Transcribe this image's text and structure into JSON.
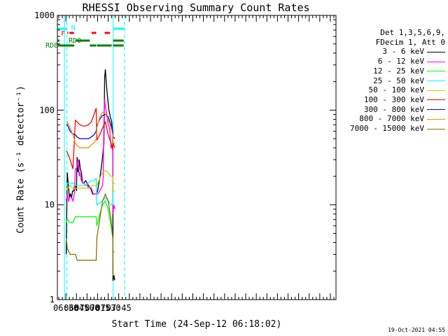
{
  "chart_data": {
    "type": "line",
    "title": "RHESSI Observing Summary Count Rates",
    "xlabel": "Start Time (24-Sep-12 06:18:02)",
    "ylabel": "Count Rate (s⁻¹ detector⁻¹)",
    "yscale": "log",
    "ylim": [
      1,
      1000
    ],
    "xlim_minutes_of_day": [
      378,
      773
    ],
    "yticks": [
      1,
      10,
      100,
      1000
    ],
    "ytick_labels": [
      "1",
      "10",
      "100",
      "1000"
    ],
    "xticks": [
      {
        "label": "06:30",
        "minute": 390
      },
      {
        "label": "06:45",
        "minute": 405
      },
      {
        "label": "07:00",
        "minute": 420
      },
      {
        "label": "07:15",
        "minute": 435
      },
      {
        "label": "07:30",
        "minute": 450
      },
      {
        "label": "07:45",
        "minute": 465
      }
    ],
    "legend_header": [
      "Det 1,3,5,6,9,",
      "FDecim 1, Att 0"
    ],
    "series": [
      {
        "name": "3 - 6 keV",
        "color": "#000000",
        "x": [
          390.5,
          392,
          393.5,
          395,
          396.5,
          398,
          399.5,
          401,
          402.5,
          403.5,
          405,
          406,
          407,
          408,
          409,
          410.5,
          412,
          413.5,
          415,
          418,
          420,
          422,
          425,
          428,
          430,
          432,
          433,
          435,
          438,
          440,
          442,
          444,
          445,
          446,
          447,
          448,
          449,
          451,
          453,
          455,
          456.5,
          456.8,
          457,
          458,
          459.5
        ],
        "y": [
          3.0,
          22,
          16,
          12,
          13,
          12,
          14,
          14,
          16,
          16,
          14,
          32,
          23,
          22,
          30,
          24,
          22,
          17,
          17,
          18,
          17,
          16,
          15,
          13,
          13,
          13,
          13,
          14,
          19,
          24,
          32,
          45,
          220,
          270,
          210,
          170,
          140,
          100,
          85,
          75,
          55,
          1.6,
          1.6,
          1.8,
          1.6
        ]
      },
      {
        "name": "6 - 12 keV",
        "color": "#ff00ff",
        "x": [
          390.5,
          392,
          394,
          396,
          398,
          400,
          402,
          403.5,
          405,
          406,
          407,
          408,
          409,
          410,
          412,
          414,
          416,
          418,
          420,
          423,
          426,
          429,
          432,
          435,
          438,
          440,
          442,
          443,
          444,
          445,
          446,
          448,
          450,
          452,
          454,
          456.5,
          456.8,
          458,
          459.5
        ],
        "y": [
          11,
          13,
          11,
          12,
          12,
          11,
          13,
          24,
          24,
          26,
          30,
          30,
          20,
          22,
          18,
          17,
          17,
          16,
          16,
          15,
          15,
          13,
          13,
          13,
          14,
          15,
          16,
          20,
          80,
          130,
          110,
          90,
          70,
          65,
          40,
          40,
          8,
          10,
          9
        ]
      },
      {
        "name": "12 - 25 keV",
        "color": "#00ff00",
        "x": [
          390.5,
          392,
          396,
          400,
          403.5,
          406,
          410,
          414,
          418,
          422,
          426,
          430,
          433,
          434,
          438,
          442,
          446,
          450,
          454,
          456.5,
          456.8,
          459.5
        ],
        "y": [
          6.5,
          7,
          6.5,
          6.5,
          7.5,
          7.5,
          7.5,
          7.5,
          7.5,
          7.5,
          7.5,
          7.5,
          7.5,
          6,
          8,
          10,
          11,
          9,
          6,
          4.5,
          3.2,
          3.2
        ]
      },
      {
        "name": "25 - 50 keV",
        "color": "#00ffff",
        "x": [
          390.5,
          392,
          396,
          400,
          403.5,
          406,
          410,
          414,
          418,
          422,
          426,
          430,
          433,
          434,
          438,
          442,
          446,
          450,
          454,
          456.5,
          457,
          459.5
        ],
        "y": [
          15,
          17,
          17,
          17,
          16,
          16,
          16,
          16,
          16,
          17,
          18,
          18,
          19,
          10,
          10.5,
          11,
          12,
          11,
          10,
          10,
          17,
          17
        ]
      },
      {
        "name": "50 - 100 keV",
        "color": "#cccc00",
        "x": [
          390.5,
          392,
          396,
          400,
          403.5,
          406,
          410,
          414,
          418,
          422,
          426,
          430,
          433,
          434,
          438,
          442,
          446,
          450,
          454,
          456.5,
          457,
          459.5
        ],
        "y": [
          14,
          15,
          16,
          15,
          15,
          15,
          15,
          15,
          15,
          15,
          16,
          16,
          16,
          16,
          19,
          22,
          23,
          22,
          20,
          20,
          14,
          14
        ]
      },
      {
        "name": "100 - 300 keV",
        "color": "#ff0000",
        "x": [
          390.5,
          392,
          396,
          400,
          403.5,
          406,
          410,
          414,
          418,
          422,
          426,
          430,
          433,
          434,
          438,
          442,
          446,
          450,
          454,
          456.5,
          457,
          459.5
        ],
        "y": [
          37,
          36,
          30,
          24,
          78,
          75,
          70,
          68,
          68,
          70,
          75,
          90,
          105,
          48,
          55,
          65,
          75,
          55,
          45,
          38,
          45,
          40
        ]
      },
      {
        "name": "300 - 800 keV",
        "color": "#0000ff",
        "x": [
          390.5,
          392,
          396,
          400,
          403.5,
          406,
          410,
          414,
          418,
          422,
          426,
          430,
          433,
          434,
          438,
          442,
          446,
          450,
          454,
          456.5,
          457,
          459.5
        ],
        "y": [
          70,
          70,
          60,
          56,
          55,
          52,
          50,
          50,
          50,
          50,
          52,
          55,
          60,
          68,
          80,
          88,
          90,
          85,
          70,
          60,
          52,
          50
        ]
      },
      {
        "name": "800 - 7000 keV",
        "color": "#ff8c00",
        "x": [
          390.5,
          392,
          396,
          400,
          403.5,
          406,
          410,
          414,
          418,
          422,
          426,
          430,
          433,
          434,
          438,
          442,
          446,
          450,
          454,
          456.5,
          457,
          459.5
        ],
        "y": [
          75,
          75,
          65,
          55,
          45,
          42,
          40,
          40,
          40,
          40,
          43,
          45,
          50,
          65,
          85,
          95,
          92,
          80,
          65,
          55,
          45,
          45
        ]
      },
      {
        "name": "7000 - 15000 keV",
        "color": "#8b7500",
        "x": [
          390.5,
          392,
          396,
          400,
          403.5,
          406,
          410,
          414,
          418,
          422,
          426,
          430,
          433,
          434,
          438,
          442,
          446,
          450,
          454,
          456.5,
          457,
          459.5
        ],
        "y": [
          4.5,
          3.5,
          3,
          3,
          3,
          2.6,
          2.6,
          2.6,
          2.6,
          2.6,
          2.6,
          2.6,
          2.6,
          4.5,
          7,
          11,
          13,
          11,
          7,
          4.5,
          1.8,
          1.8
        ]
      }
    ],
    "flags": [
      {
        "label": "N",
        "color": "#00ffff",
        "level": "top",
        "segments": [
          [
            378,
            391.5
          ],
          [
            457,
            473
          ]
        ]
      },
      {
        "label": "F",
        "color": "#ff0000",
        "level": "middle",
        "segments": [
          [
            392,
            393.5
          ],
          [
            395,
            401.5
          ],
          [
            426.5,
            433
          ],
          [
            445,
            452.5
          ]
        ]
      },
      {
        "label": "RD0",
        "color": "#008000",
        "level": "lower",
        "segments": [
          [
            378,
            381
          ],
          [
            403.5,
            424
          ],
          [
            457,
            472
          ]
        ]
      },
      {
        "label": "RD8",
        "color": "#008000",
        "level": "bottom",
        "segments": [
          [
            379,
            402
          ],
          [
            424,
            433
          ],
          [
            434,
            455
          ],
          [
            457,
            472
          ]
        ]
      }
    ],
    "verticals": [
      {
        "minute": 388,
        "color": "#00ffff",
        "style": "solid"
      },
      {
        "minute": 391.5,
        "color": "#00ffff",
        "style": "dashed"
      },
      {
        "minute": 457,
        "color": "#00ffff",
        "style": "solid"
      },
      {
        "minute": 473,
        "color": "#00ffff",
        "style": "dashed"
      }
    ],
    "grid": false
  },
  "footer_timestamp": "19-Oct-2021 04:55"
}
